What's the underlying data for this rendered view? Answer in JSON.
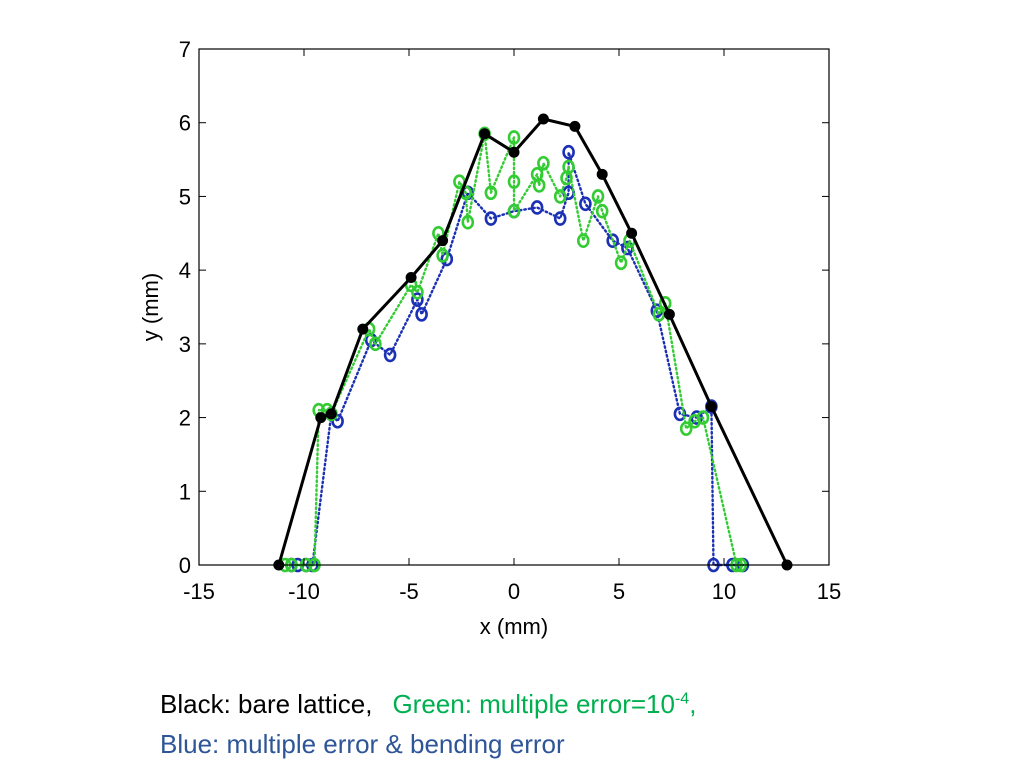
{
  "chart_data": {
    "type": "line",
    "xlabel": "x (mm)",
    "ylabel": "y (mm)",
    "xlim": [
      -15,
      15
    ],
    "ylim": [
      0,
      7
    ],
    "xticks": [
      -15,
      -10,
      -5,
      0,
      5,
      10,
      15
    ],
    "yticks": [
      0,
      1,
      2,
      3,
      4,
      5,
      6,
      7
    ],
    "grid": false,
    "series": [
      {
        "color": "#000000",
        "line_style": "solid",
        "marker": "filled-circle",
        "points": [
          [
            -11.2,
            0
          ],
          [
            -9.2,
            2.0
          ],
          [
            -8.7,
            2.05
          ],
          [
            -7.2,
            3.2
          ],
          [
            -4.9,
            3.9
          ],
          [
            -3.4,
            4.4
          ],
          [
            -1.4,
            5.85
          ],
          [
            0.0,
            5.6
          ],
          [
            1.4,
            6.05
          ],
          [
            2.9,
            5.95
          ],
          [
            4.2,
            5.3
          ],
          [
            5.6,
            4.5
          ],
          [
            7.4,
            3.4
          ],
          [
            9.4,
            2.15
          ],
          [
            13.0,
            0
          ]
        ]
      },
      {
        "color": "#1b30b5",
        "line_style": "dotted",
        "marker": "open-circle",
        "points": [
          [
            -10.6,
            0
          ],
          [
            -10.3,
            0
          ],
          [
            -9.9,
            0
          ],
          [
            -9.6,
            0
          ],
          [
            -8.7,
            2.05
          ],
          [
            -8.4,
            1.95
          ],
          [
            -6.8,
            3.05
          ],
          [
            -5.9,
            2.85
          ],
          [
            -4.6,
            3.6
          ],
          [
            -4.4,
            3.4
          ],
          [
            -3.2,
            4.15
          ],
          [
            -2.2,
            5.05
          ],
          [
            -1.1,
            4.7
          ],
          [
            0.0,
            4.8
          ],
          [
            1.1,
            4.85
          ],
          [
            2.2,
            4.7
          ],
          [
            2.6,
            5.05
          ],
          [
            2.6,
            5.6
          ],
          [
            3.4,
            4.9
          ],
          [
            4.7,
            4.4
          ],
          [
            5.4,
            4.3
          ],
          [
            6.8,
            3.45
          ],
          [
            7.9,
            2.05
          ],
          [
            8.7,
            2.0
          ],
          [
            9.4,
            2.15
          ],
          [
            9.5,
            0
          ],
          [
            10.4,
            0
          ],
          [
            10.9,
            0
          ]
        ]
      },
      {
        "color": "#33cc33",
        "line_style": "dotted",
        "marker": "open-circle",
        "points": [
          [
            -10.9,
            0
          ],
          [
            -10.6,
            0
          ],
          [
            -9.9,
            0
          ],
          [
            -9.5,
            0
          ],
          [
            -9.3,
            2.1
          ],
          [
            -8.9,
            2.1
          ],
          [
            -8.7,
            2.05
          ],
          [
            -6.9,
            3.2
          ],
          [
            -6.6,
            3.0
          ],
          [
            -4.9,
            3.8
          ],
          [
            -4.6,
            3.7
          ],
          [
            -3.6,
            4.5
          ],
          [
            -3.4,
            4.2
          ],
          [
            -2.6,
            5.2
          ],
          [
            -2.3,
            5.05
          ],
          [
            -2.2,
            4.65
          ],
          [
            -1.4,
            5.85
          ],
          [
            -1.1,
            5.05
          ],
          [
            0.0,
            5.8
          ],
          [
            0.0,
            5.2
          ],
          [
            0.0,
            4.8
          ],
          [
            1.1,
            5.3
          ],
          [
            1.2,
            5.15
          ],
          [
            1.4,
            5.45
          ],
          [
            2.2,
            5.0
          ],
          [
            2.5,
            5.25
          ],
          [
            2.6,
            5.4
          ],
          [
            3.3,
            4.4
          ],
          [
            4.0,
            5.0
          ],
          [
            4.2,
            4.8
          ],
          [
            5.1,
            4.1
          ],
          [
            5.5,
            4.4
          ],
          [
            6.9,
            3.4
          ],
          [
            7.2,
            3.55
          ],
          [
            8.2,
            1.85
          ],
          [
            8.6,
            1.95
          ],
          [
            9.0,
            2.0
          ],
          [
            10.6,
            0
          ],
          [
            10.8,
            0
          ]
        ]
      }
    ]
  },
  "caption": {
    "black": "Black: bare lattice,",
    "green_prefix": "Green: multiple error=10",
    "green_exponent": "-4",
    "green_suffix": ",",
    "blue": "Blue: multiple error & bending error"
  }
}
